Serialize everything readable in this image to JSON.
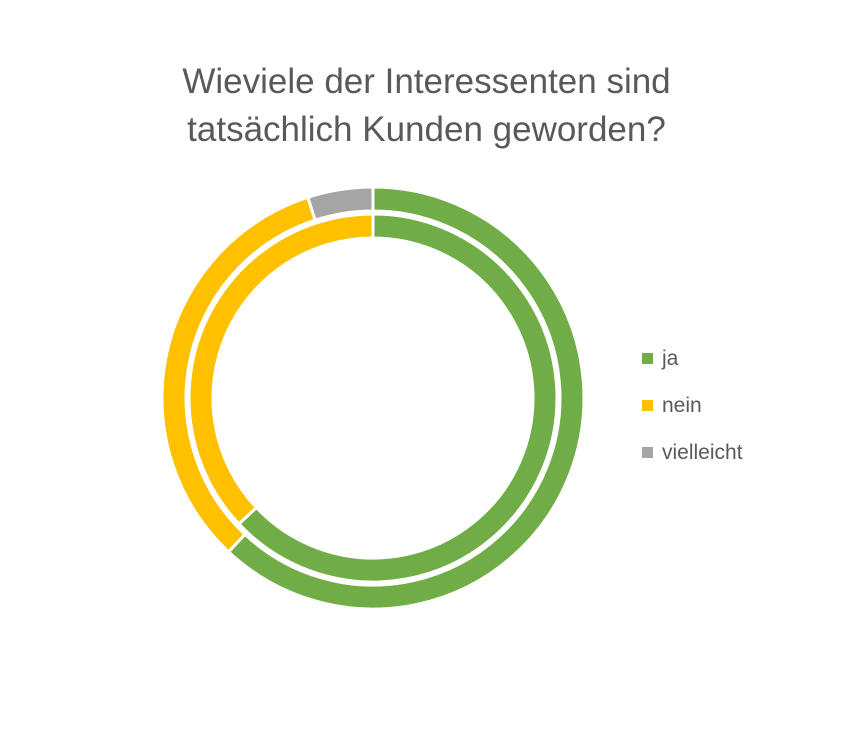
{
  "chart_data": {
    "type": "doughnut",
    "title": [
      "Wieviele der Interessenten sind",
      "tatsächlich Kunden geworden?"
    ],
    "categories": [
      "ja",
      "nein",
      "vielleicht"
    ],
    "colors": [
      "#70AD47",
      "#FFC000",
      "#A5A5A5"
    ],
    "series": [
      {
        "values": [
          62,
          33,
          5
        ]
      },
      {
        "values": [
          63,
          37,
          0
        ]
      }
    ],
    "legend_position": "right"
  }
}
